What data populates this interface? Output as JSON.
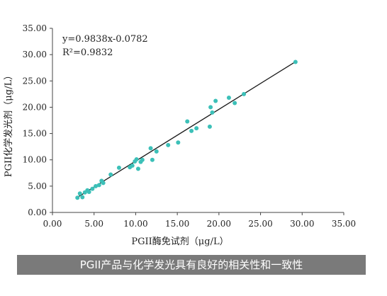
{
  "caption": "PGII产品与化学发光具有良好的相关性和一致性",
  "chart_data": {
    "type": "scatter",
    "xlabel": "PGII酶免试剂（μg/L）",
    "ylabel": "PGII化学发光剂（μg/L）",
    "xlim": [
      0,
      35
    ],
    "ylim": [
      0,
      35
    ],
    "xticks": [
      "0.00",
      "5.00",
      "10.00",
      "15.00",
      "20.00",
      "25.00",
      "30.00",
      "35.00"
    ],
    "yticks": [
      "0.00",
      "5.00",
      "10.00",
      "15.00",
      "20.00",
      "25.00",
      "30.00",
      "35.00"
    ],
    "equation": "y=0.9838x-0.0782",
    "r_squared": "R²=0.9832",
    "fit": {
      "slope": 0.9838,
      "intercept": -0.0782
    },
    "fit_range": [
      3.0,
      29.2
    ],
    "grid": false,
    "colors": {
      "points": "#3cc0b8",
      "line": "#1a1a1a",
      "axis": "#444444"
    },
    "points": [
      {
        "x": 3.0,
        "y": 2.8
      },
      {
        "x": 3.3,
        "y": 3.6
      },
      {
        "x": 3.6,
        "y": 2.9
      },
      {
        "x": 3.9,
        "y": 3.8
      },
      {
        "x": 4.2,
        "y": 4.2
      },
      {
        "x": 4.4,
        "y": 3.9
      },
      {
        "x": 4.8,
        "y": 4.5
      },
      {
        "x": 5.2,
        "y": 5.0
      },
      {
        "x": 5.6,
        "y": 5.2
      },
      {
        "x": 5.9,
        "y": 6.0
      },
      {
        "x": 6.1,
        "y": 5.6
      },
      {
        "x": 7.0,
        "y": 7.2
      },
      {
        "x": 8.0,
        "y": 8.5
      },
      {
        "x": 9.3,
        "y": 8.6
      },
      {
        "x": 9.6,
        "y": 8.9
      },
      {
        "x": 9.9,
        "y": 9.7
      },
      {
        "x": 10.1,
        "y": 10.1
      },
      {
        "x": 10.3,
        "y": 8.3
      },
      {
        "x": 10.6,
        "y": 9.6
      },
      {
        "x": 10.8,
        "y": 10.0
      },
      {
        "x": 11.8,
        "y": 12.2
      },
      {
        "x": 12.0,
        "y": 10.0
      },
      {
        "x": 12.5,
        "y": 11.6
      },
      {
        "x": 13.9,
        "y": 12.8
      },
      {
        "x": 15.1,
        "y": 13.3
      },
      {
        "x": 16.2,
        "y": 17.3
      },
      {
        "x": 16.7,
        "y": 15.5
      },
      {
        "x": 17.3,
        "y": 16.0
      },
      {
        "x": 18.9,
        "y": 16.3
      },
      {
        "x": 19.0,
        "y": 20.0
      },
      {
        "x": 19.2,
        "y": 19.0
      },
      {
        "x": 19.6,
        "y": 21.2
      },
      {
        "x": 21.2,
        "y": 21.8
      },
      {
        "x": 21.9,
        "y": 20.8
      },
      {
        "x": 23.0,
        "y": 22.5
      },
      {
        "x": 29.2,
        "y": 28.6
      }
    ]
  }
}
